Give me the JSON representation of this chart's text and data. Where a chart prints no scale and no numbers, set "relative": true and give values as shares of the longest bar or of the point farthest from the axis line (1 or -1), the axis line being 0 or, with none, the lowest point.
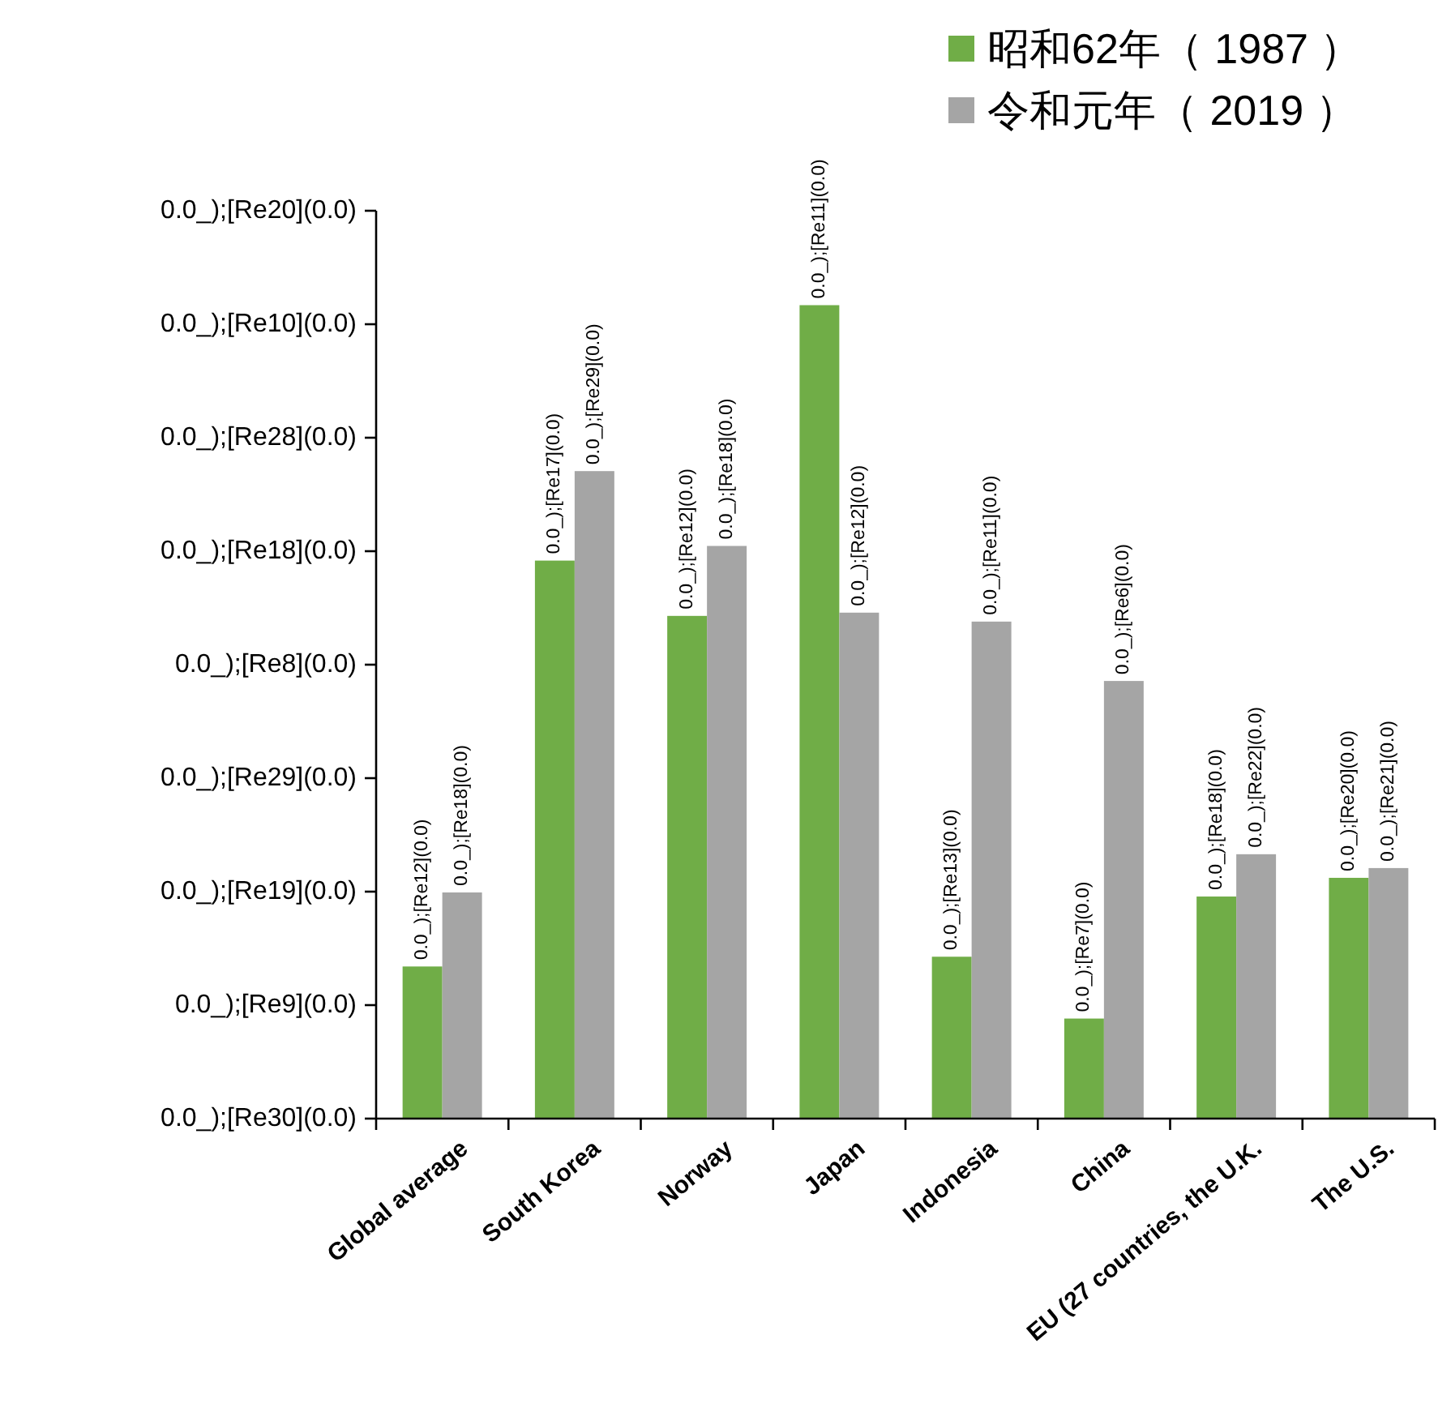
{
  "chart_data": {
    "type": "bar",
    "relative": true,
    "categories": [
      "Global average",
      "South Korea",
      "Norway",
      "Japan",
      "Indonesia",
      "China",
      "EU (27 countries, the U.K.",
      "The U.S."
    ],
    "series": [
      {
        "name": "昭和62年（ 1987 ）",
        "color": "#70ad47",
        "values": [
          0.187,
          0.686,
          0.618,
          1,
          0.199,
          0.123,
          0.273,
          0.296
        ]
      },
      {
        "name": "令和元年（ 2019 ）",
        "color": "#a5a5a5",
        "values": [
          0.278,
          0.796,
          0.704,
          0.622,
          0.611,
          0.538,
          0.325,
          0.308
        ]
      }
    ],
    "annotations": [
      "0.0_);[Re12](0.0)",
      "0.0_);[Re17](0.0)",
      "0.0_);[Re12](0.0)",
      "0.0_);[Re11](0.0)",
      "0.0_);[Re13](0.0)",
      "0.0_);[Re7](0.0)",
      "0.0_);[Re18](0.0)",
      "0.0_);[Re20](0.0)",
      "0.0_);[Re30](0.0)",
      "0.0_);[Re9](0.0)",
      "0.0_);[Re19](0.0)",
      "0.0_);[Re29](0.0)",
      "0.0_);[Re8](0.0)",
      "0.0_);[Re18](0.0)",
      "0.0_);[Re28](0.0)",
      "0.0_);[Re10](0.0)",
      "0.0_);[Re20](0.0)",
      {
        "text": "0.0_);[Re18](0.0)",
        "x": "Global average",
        "y": 0.278
      },
      {
        "text": "0.0_);[Re29](0.0)",
        "x": "South Korea",
        "y": 0.796
      },
      {
        "text": "0.0_);[Re18](0.0)",
        "x": "Norway",
        "y": 0.704
      },
      {
        "text": "0.0_);[Re12](0.0)",
        "x": "Japan",
        "y": 0.622
      },
      {
        "text": "0.0_);[Re11](0.0)",
        "x": "Indonesia",
        "y": 0.611
      },
      {
        "text": "0.0_);[Re6](0.0)",
        "x": "China",
        "y": 0.538
      },
      {
        "text": "0.0_);[Re22](0.0)",
        "x": "EU (27 countries, the U.K.",
        "y": 0.325
      },
      {
        "text": "0.0_);[Re21](0.0)",
        "x": "The U.S.",
        "y": 0.308
      }
    ],
    "legend": "top right"
  }
}
